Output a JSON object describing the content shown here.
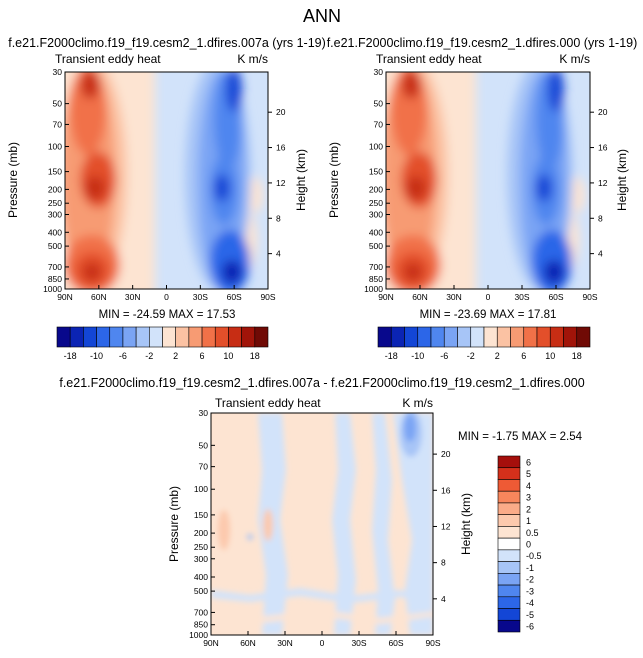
{
  "page_title": "ANN",
  "chart_data": [
    {
      "type": "heatmap",
      "title": "f.e21.F2000climo.f19_f19.cesm2_1.dfires.007a (yrs 1-19)",
      "left_label": "Transient eddy heat",
      "units": "K m/s",
      "ylabel": "Pressure (mb)",
      "right_label": "Height (km)",
      "x_ticks": [
        "90N",
        "60N",
        "30N",
        "0",
        "30S",
        "60S",
        "90S"
      ],
      "y_ticks": [
        "30",
        "50",
        "70",
        "100",
        "150",
        "200",
        "250",
        "300",
        "400",
        "500",
        "700",
        "850",
        "1000"
      ],
      "height_ticks": [
        "20",
        "16",
        "12",
        "8",
        "4"
      ],
      "stats": "MIN = -24.59  MAX = 17.53",
      "colorbar_labels": [
        "-18",
        "-10",
        "-6",
        "-2",
        "2",
        "6",
        "10",
        "18"
      ],
      "colorbar_levels": [
        -18,
        -14,
        -10,
        -8,
        -6,
        -4,
        -2,
        0,
        2,
        4,
        6,
        8,
        10,
        14,
        18
      ],
      "colorbar_colors": [
        "#08088c",
        "#0b24b4",
        "#1346d6",
        "#2c66e8",
        "#4f86ef",
        "#7aa4f4",
        "#a7c5f7",
        "#d2e3fa",
        "#fde4d2",
        "#fbc2a3",
        "#f79b73",
        "#f17148",
        "#e34f2a",
        "#c72d14",
        "#a11409",
        "#700a05"
      ]
    },
    {
      "type": "heatmap",
      "title": "f.e21.F2000climo.f19_f19.cesm2_1.dfires.000 (yrs 1-19)",
      "left_label": "Transient eddy heat",
      "units": "K m/s",
      "ylabel": "Pressure (mb)",
      "right_label": "Height (km)",
      "x_ticks": [
        "90N",
        "60N",
        "30N",
        "0",
        "30S",
        "60S",
        "90S"
      ],
      "y_ticks": [
        "30",
        "50",
        "70",
        "100",
        "150",
        "200",
        "250",
        "300",
        "400",
        "500",
        "700",
        "850",
        "1000"
      ],
      "height_ticks": [
        "20",
        "16",
        "12",
        "8",
        "4"
      ],
      "stats": "MIN = -23.69  MAX = 17.81",
      "colorbar_labels": [
        "-18",
        "-10",
        "-6",
        "-2",
        "2",
        "6",
        "10",
        "18"
      ]
    },
    {
      "type": "heatmap",
      "title": "f.e21.F2000climo.f19_f19.cesm2_1.dfires.007a - f.e21.F2000climo.f19_f19.cesm2_1.dfires.000",
      "left_label": "Transient eddy heat",
      "units": "K m/s",
      "ylabel": "Pressure (mb)",
      "right_label": "Height (km)",
      "x_ticks": [
        "90N",
        "60N",
        "30N",
        "0",
        "30S",
        "60S",
        "90S"
      ],
      "y_ticks": [
        "30",
        "50",
        "70",
        "100",
        "150",
        "200",
        "250",
        "300",
        "400",
        "500",
        "700",
        "850",
        "1000"
      ],
      "height_ticks": [
        "20",
        "16",
        "12",
        "8",
        "4"
      ],
      "stats": "MIN = -1.75  MAX =  2.54",
      "colorbar_labels": [
        "6",
        "5",
        "4",
        "3",
        "2",
        "1",
        "0.5",
        "0",
        "-0.5",
        "-1",
        "-2",
        "-3",
        "-4",
        "-5",
        "-6"
      ],
      "colorbar_colors": [
        "#a50f0c",
        "#d4301b",
        "#ee5a35",
        "#f8865c",
        "#fbab88",
        "#fcc9ad",
        "#fde4d2",
        "#ffffff",
        "#d2e3fa",
        "#a7c5f7",
        "#7aa4f4",
        "#4f86ef",
        "#2c66e8",
        "#1346d6",
        "#08088c"
      ]
    }
  ]
}
